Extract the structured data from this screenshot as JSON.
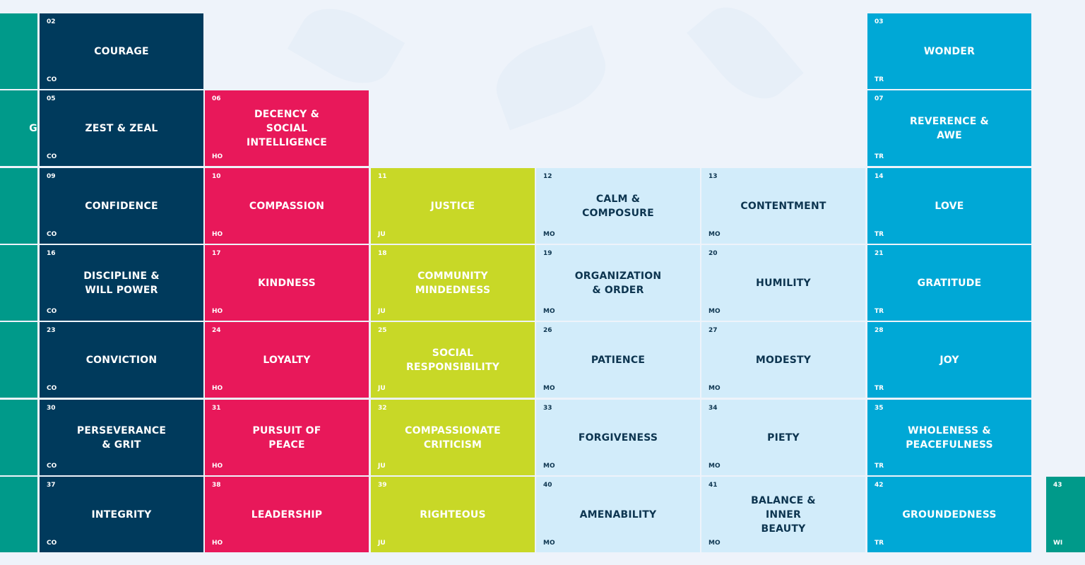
{
  "colors": {
    "CO": "#003a5c",
    "HO": "#e8185a",
    "JU": "#c8d827",
    "MO": "#d2ecfa",
    "TR": "#00a8d6",
    "WI": "#009a8a"
  },
  "columns": [
    {
      "group": "WI",
      "partial": "left",
      "cells": [
        {
          "label": ""
        },
        {
          "label": "G"
        },
        {
          "label": ""
        },
        {
          "label": ""
        },
        {
          "label": ""
        },
        {
          "label": ""
        },
        {
          "label": ""
        }
      ]
    },
    {
      "group": "CO",
      "cells": [
        {
          "num": "02",
          "label": "Courage",
          "group": "CO"
        },
        {
          "num": "05",
          "label": "Zest & Zeal",
          "group": "CO"
        },
        {
          "num": "09",
          "label": "Confidence",
          "group": "CO"
        },
        {
          "num": "16",
          "label": "Discipline &\nWill Power",
          "group": "CO"
        },
        {
          "num": "23",
          "label": "Conviction",
          "group": "CO"
        },
        {
          "num": "30",
          "label": "Perseverance\n& Grit",
          "group": "CO"
        },
        {
          "num": "37",
          "label": "Integrity",
          "group": "CO"
        }
      ]
    },
    {
      "group": "HO",
      "cells": [
        null,
        {
          "num": "06",
          "label": "Decency &\nSocial\nIntelligence",
          "group": "HO"
        },
        {
          "num": "10",
          "label": "Compassion",
          "group": "HO"
        },
        {
          "num": "17",
          "label": "Kindness",
          "group": "HO"
        },
        {
          "num": "24",
          "label": "Loyalty",
          "group": "HO"
        },
        {
          "num": "31",
          "label": "Pursuit of\nPeace",
          "group": "HO"
        },
        {
          "num": "38",
          "label": "Leadership",
          "group": "HO"
        }
      ]
    },
    {
      "group": "JU",
      "cells": [
        null,
        null,
        {
          "num": "11",
          "label": "Justice",
          "group": "JU"
        },
        {
          "num": "18",
          "label": "Community\nMindedness",
          "group": "JU"
        },
        {
          "num": "25",
          "label": "Social\nResponsibility",
          "group": "JU"
        },
        {
          "num": "32",
          "label": "Compassionate\nCriticism",
          "group": "JU"
        },
        {
          "num": "39",
          "label": "Righteous",
          "group": "JU"
        }
      ]
    },
    {
      "group": "MO",
      "cells": [
        null,
        null,
        {
          "num": "12",
          "label": "Calm &\nComposure",
          "group": "MO"
        },
        {
          "num": "19",
          "label": "Organization\n& Order",
          "group": "MO"
        },
        {
          "num": "26",
          "label": "Patience",
          "group": "MO"
        },
        {
          "num": "33",
          "label": "Forgiveness",
          "group": "MO"
        },
        {
          "num": "40",
          "label": "Amenability",
          "group": "MO"
        }
      ]
    },
    {
      "group": "MO",
      "cells": [
        null,
        null,
        {
          "num": "13",
          "label": "Contentment",
          "group": "MO"
        },
        {
          "num": "20",
          "label": "Humility",
          "group": "MO"
        },
        {
          "num": "27",
          "label": "Modesty",
          "group": "MO"
        },
        {
          "num": "34",
          "label": "Piety",
          "group": "MO"
        },
        {
          "num": "41",
          "label": "Balance &\nInner\nBeauty",
          "group": "MO"
        }
      ]
    },
    {
      "group": "TR",
      "cells": [
        {
          "num": "03",
          "label": "Wonder",
          "group": "TR"
        },
        {
          "num": "07",
          "label": "Reverence &\nAwe",
          "group": "TR"
        },
        {
          "num": "14",
          "label": "Love",
          "group": "TR"
        },
        {
          "num": "21",
          "label": "Gratitude",
          "group": "TR"
        },
        {
          "num": "28",
          "label": "Joy",
          "group": "TR"
        },
        {
          "num": "35",
          "label": "Wholeness &\nPeacefulness",
          "group": "TR"
        },
        {
          "num": "42",
          "label": "Groundedness",
          "group": "TR"
        }
      ]
    },
    {
      "group": "WI",
      "partial": "right",
      "cells": [
        null,
        null,
        null,
        null,
        null,
        null,
        {
          "num": "43",
          "label": "",
          "group": "WI"
        }
      ]
    }
  ]
}
